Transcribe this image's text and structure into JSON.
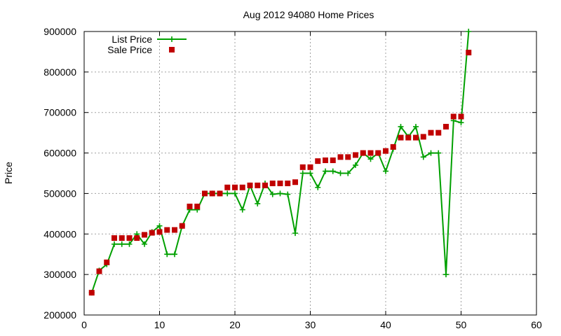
{
  "chart_data": {
    "type": "line",
    "title": "Aug 2012 94080 Home Prices",
    "xlabel": "",
    "ylabel": "Price",
    "xlim": [
      0,
      60
    ],
    "ylim": [
      200000,
      900000
    ],
    "xticks": [
      0,
      10,
      20,
      30,
      40,
      50,
      60
    ],
    "yticks": [
      200000,
      300000,
      400000,
      500000,
      600000,
      700000,
      800000,
      900000
    ],
    "grid": true,
    "legend_position": "top-left",
    "series": [
      {
        "name": "List Price",
        "style": "line-plus",
        "color": "#00a000",
        "x": [
          1,
          2,
          3,
          4,
          5,
          6,
          7,
          8,
          9,
          10,
          11,
          12,
          13,
          14,
          15,
          16,
          17,
          18,
          19,
          20,
          21,
          22,
          23,
          24,
          25,
          26,
          27,
          28,
          29,
          30,
          31,
          32,
          33,
          34,
          35,
          36,
          37,
          38,
          39,
          40,
          41,
          42,
          43,
          44,
          45,
          46,
          47,
          48,
          49,
          50,
          51
        ],
        "values": [
          255000,
          310000,
          325000,
          375000,
          375000,
          375000,
          400000,
          375000,
          405000,
          420000,
          350000,
          350000,
          420000,
          460000,
          460000,
          500000,
          500000,
          500000,
          500000,
          500000,
          460000,
          520000,
          475000,
          525000,
          498000,
          500000,
          498000,
          402000,
          550000,
          550000,
          515000,
          555000,
          555000,
          550000,
          550000,
          570000,
          600000,
          585000,
          600000,
          555000,
          610000,
          665000,
          640000,
          665000,
          590000,
          600000,
          600000,
          300000,
          680000,
          675000,
          900000
        ]
      },
      {
        "name": "Sale Price",
        "style": "square-markers",
        "color": "#c00000",
        "x": [
          1,
          2,
          3,
          4,
          5,
          6,
          7,
          8,
          9,
          10,
          11,
          12,
          13,
          14,
          15,
          16,
          17,
          18,
          19,
          20,
          21,
          22,
          23,
          24,
          25,
          26,
          27,
          28,
          29,
          30,
          31,
          32,
          33,
          34,
          35,
          36,
          37,
          38,
          39,
          40,
          41,
          42,
          43,
          44,
          45,
          46,
          47,
          48,
          49,
          50,
          51
        ],
        "values": [
          255000,
          308000,
          330000,
          390000,
          390000,
          390000,
          390000,
          398000,
          403000,
          405000,
          410000,
          410000,
          420000,
          468000,
          468000,
          500000,
          500000,
          500000,
          515000,
          515000,
          515000,
          520000,
          520000,
          520000,
          525000,
          525000,
          525000,
          528000,
          565000,
          565000,
          580000,
          582000,
          582000,
          590000,
          590000,
          595000,
          600000,
          600000,
          600000,
          605000,
          615000,
          638000,
          638000,
          638000,
          640000,
          650000,
          650000,
          665000,
          690000,
          690000,
          848000
        ]
      }
    ]
  }
}
